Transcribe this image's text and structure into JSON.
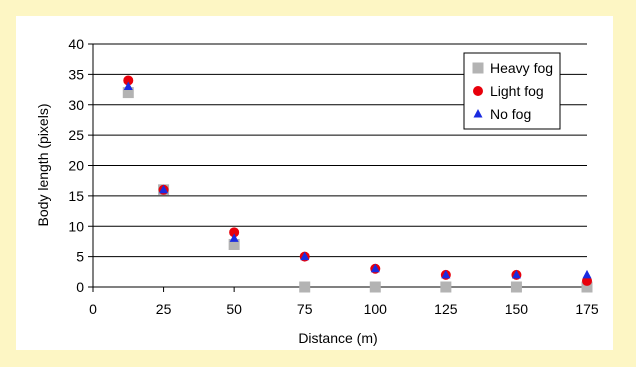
{
  "chart_data": {
    "type": "scatter",
    "title": "",
    "xlabel": "Distance (m)",
    "ylabel": "Body length (pixels)",
    "xlim": [
      0,
      175
    ],
    "ylim": [
      0,
      40
    ],
    "xticks": [
      0,
      25,
      50,
      75,
      100,
      125,
      150,
      175
    ],
    "yticks": [
      0,
      5,
      10,
      15,
      20,
      25,
      30,
      35,
      40
    ],
    "grid": "horizontal",
    "legend_position": "top-right",
    "series": [
      {
        "name": "Heavy fog",
        "marker": "square",
        "color": "#b3b3b3",
        "x": [
          12.5,
          25,
          50,
          75,
          100,
          125,
          150,
          175
        ],
        "y": [
          32,
          16,
          7,
          0,
          0,
          0,
          0,
          0
        ]
      },
      {
        "name": "Light fog",
        "marker": "circle",
        "color": "#e8000b",
        "x": [
          12.5,
          25,
          50,
          75,
          100,
          125,
          150,
          175
        ],
        "y": [
          34,
          16,
          9,
          5,
          3,
          2,
          2,
          1
        ]
      },
      {
        "name": "No fog",
        "marker": "triangle",
        "color": "#1a2be0",
        "x": [
          12.5,
          25,
          50,
          75,
          100,
          125,
          150,
          175
        ],
        "y": [
          33,
          16,
          8,
          5,
          3,
          2,
          2,
          2
        ]
      }
    ]
  }
}
